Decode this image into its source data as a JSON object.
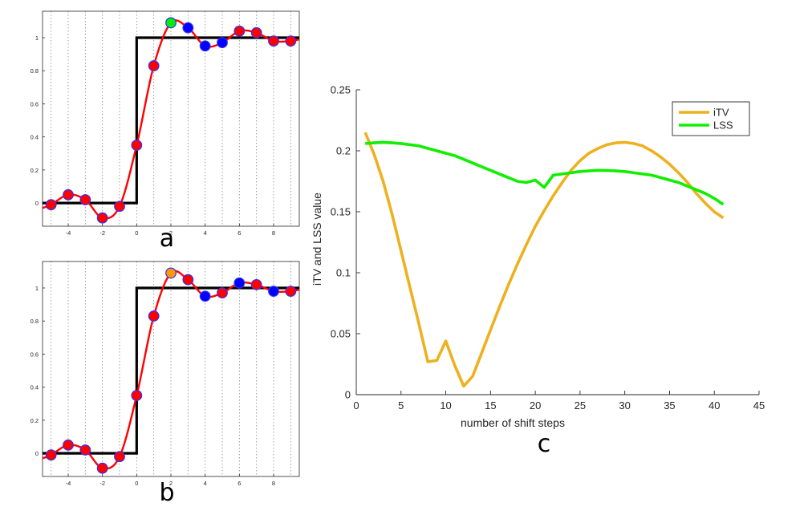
{
  "chart_data": [
    {
      "type": "line",
      "panel_label": "a",
      "xlim": [
        -5.5,
        9.5
      ],
      "ylim": [
        -0.14,
        1.16
      ],
      "x_ticks": [
        "-4",
        "-2",
        "0",
        "2",
        "4",
        "6",
        "8"
      ],
      "y_ticks": [
        "0",
        "0.2",
        "0.4",
        "0.6",
        "0.8",
        "1"
      ],
      "vertical_gridlines_at": [
        -5,
        -4,
        -3,
        -2,
        -1,
        0,
        1,
        2,
        3,
        4,
        5,
        6,
        7,
        8,
        9
      ],
      "series": [
        {
          "kind": "step",
          "color": "#000000",
          "x": [
            -5.5,
            0,
            0,
            9.5
          ],
          "values": [
            0,
            0,
            1,
            1
          ]
        },
        {
          "kind": "interpolated-curve",
          "color": "#ff0000"
        },
        {
          "kind": "samples",
          "x": [
            -5,
            -4,
            -3,
            -2,
            -1,
            0,
            1,
            2,
            3,
            4,
            5,
            6,
            7,
            8,
            9
          ],
          "values": [
            -0.01,
            0.05,
            0.02,
            -0.09,
            -0.02,
            0.35,
            0.83,
            1.09,
            1.06,
            0.95,
            0.97,
            1.04,
            1.03,
            0.98,
            0.98
          ],
          "colors": [
            "#ff0000",
            "#ff0000",
            "#ff0000",
            "#ff0000",
            "#ff0000",
            "#ff0000",
            "#ff0000",
            "#00ee00",
            "#0000ff",
            "#0000ff",
            "#0000ff",
            "#ff0000",
            "#ff0000",
            "#ff0000",
            "#ff0000"
          ]
        }
      ]
    },
    {
      "type": "line",
      "panel_label": "b",
      "xlim": [
        -5.5,
        9.5
      ],
      "ylim": [
        -0.14,
        1.16
      ],
      "x_ticks": [
        "-4",
        "-2",
        "0",
        "2",
        "4",
        "6",
        "8"
      ],
      "y_ticks": [
        "0",
        "0.2",
        "0.4",
        "0.6",
        "0.8",
        "1"
      ],
      "vertical_gridlines_at": [
        -5,
        -4,
        -3,
        -2,
        -1,
        0,
        1,
        2,
        3,
        4,
        5,
        6,
        7,
        8,
        9
      ],
      "series": [
        {
          "kind": "step",
          "color": "#000000",
          "x": [
            -5.5,
            0,
            0,
            9.5
          ],
          "values": [
            0,
            0,
            1,
            1
          ]
        },
        {
          "kind": "interpolated-curve",
          "color": "#ff0000"
        },
        {
          "kind": "samples",
          "x": [
            -5,
            -4,
            -3,
            -2,
            -1,
            0,
            1,
            2,
            3,
            4,
            5,
            6,
            7,
            8,
            9
          ],
          "values": [
            -0.01,
            0.05,
            0.02,
            -0.09,
            -0.02,
            0.35,
            0.83,
            1.09,
            1.05,
            0.95,
            0.97,
            1.03,
            1.02,
            0.98,
            0.98
          ],
          "colors": [
            "#ff0000",
            "#ff0000",
            "#ff0000",
            "#ff0000",
            "#ff0000",
            "#ff0000",
            "#ff0000",
            "#ff9900",
            "#ff0000",
            "#0000ff",
            "#ff0000",
            "#0000ff",
            "#ff0000",
            "#0000ff",
            "#ff0000"
          ]
        }
      ]
    },
    {
      "type": "line",
      "panel_label": "c",
      "xlabel": "number of shift steps",
      "ylabel": "iTV and LSS value",
      "xlim": [
        0,
        45
      ],
      "ylim": [
        0,
        0.25
      ],
      "x_ticks": [
        "0",
        "5",
        "10",
        "15",
        "20",
        "25",
        "30",
        "35",
        "40",
        "45"
      ],
      "y_ticks": [
        "0",
        "0.05",
        "0.1",
        "0.15",
        "0.2",
        "0.25"
      ],
      "legend": "top-right",
      "series": [
        {
          "name": "iTV",
          "color": "#edb120",
          "x": [
            1,
            2,
            3,
            4,
            5,
            6,
            7,
            8,
            9,
            10,
            11,
            12,
            13,
            14,
            15,
            16,
            17,
            18,
            19,
            20,
            21,
            22,
            23,
            24,
            25,
            26,
            27,
            28,
            29,
            30,
            31,
            32,
            33,
            34,
            35,
            36,
            37,
            38,
            39,
            40,
            41
          ],
          "values": [
            0.215,
            0.197,
            0.175,
            0.148,
            0.118,
            0.088,
            0.058,
            0.027,
            0.028,
            0.044,
            0.024,
            0.007,
            0.015,
            0.034,
            0.053,
            0.072,
            0.09,
            0.107,
            0.123,
            0.138,
            0.151,
            0.163,
            0.174,
            0.184,
            0.192,
            0.198,
            0.202,
            0.205,
            0.2065,
            0.207,
            0.206,
            0.204,
            0.2,
            0.195,
            0.189,
            0.182,
            0.174,
            0.165,
            0.157,
            0.15,
            0.145
          ]
        },
        {
          "name": "LSS",
          "color": "#11ee00",
          "x": [
            1,
            2,
            3,
            4,
            5,
            6,
            7,
            8,
            9,
            10,
            11,
            12,
            13,
            14,
            15,
            16,
            17,
            18,
            19,
            20,
            21,
            22,
            23,
            24,
            25,
            26,
            27,
            28,
            29,
            30,
            31,
            32,
            33,
            34,
            35,
            36,
            37,
            38,
            39,
            40,
            41
          ],
          "values": [
            0.206,
            0.2065,
            0.207,
            0.2065,
            0.206,
            0.205,
            0.204,
            0.202,
            0.2,
            0.198,
            0.196,
            0.193,
            0.19,
            0.187,
            0.184,
            0.181,
            0.178,
            0.175,
            0.174,
            0.176,
            0.17,
            0.18,
            0.181,
            0.182,
            0.183,
            0.1835,
            0.184,
            0.1838,
            0.1835,
            0.183,
            0.182,
            0.181,
            0.18,
            0.178,
            0.176,
            0.174,
            0.171,
            0.168,
            0.165,
            0.161,
            0.156
          ]
        }
      ]
    }
  ]
}
